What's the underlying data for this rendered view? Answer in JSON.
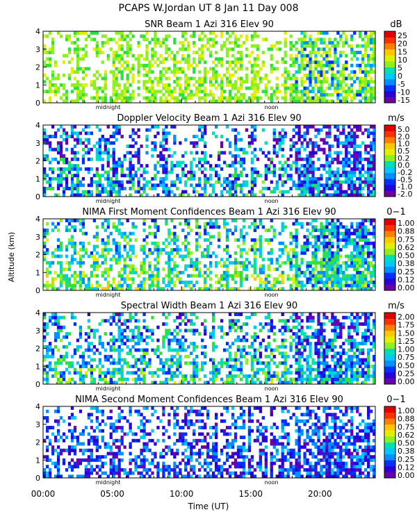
{
  "header": {
    "title": "PCAPS W.Jordan UT   8 Jan 11 Day 008"
  },
  "figure": {
    "ylabel": "Altitude (km)",
    "xlabel": "Time (UT)",
    "x_tick_labels": [
      "00:00",
      "05:00",
      "10:00",
      "15:00",
      "20:00"
    ],
    "marker_midnight": "midnight",
    "marker_noon": "noon"
  },
  "palette": [
    "#6a00a8",
    "#2a00d8",
    "#0030ff",
    "#0090ff",
    "#00c8ff",
    "#00e0b0",
    "#30e040",
    "#8ef020",
    "#e0f000",
    "#ffc800",
    "#ff8000",
    "#ff3000",
    "#e00000"
  ],
  "chart_data": [
    {
      "type": "heatmap",
      "title": "SNR Beam 1 Azi 316 Elev 90",
      "unit": "dB",
      "x_hours_range": [
        0,
        24
      ],
      "ylim_km": [
        0,
        4
      ],
      "y_ticks": [
        "0",
        "1",
        "2",
        "3",
        "4"
      ],
      "colorbar_ticks": [
        "25",
        "20",
        "15",
        "10",
        "5",
        "0",
        "-5",
        "-10",
        "-15"
      ],
      "colorbar_range": [
        -15,
        25
      ]
    },
    {
      "type": "heatmap",
      "title": "Doppler Velocity Beam 1 Azi 316 Elev 90",
      "unit": "m/s",
      "x_hours_range": [
        0,
        24
      ],
      "ylim_km": [
        0,
        4
      ],
      "y_ticks": [
        "0",
        "1",
        "2",
        "3",
        "4"
      ],
      "colorbar_ticks": [
        "5.0",
        "2.0",
        "1.0",
        "0.5",
        "0.2",
        "0.0",
        "-0.2",
        "-0.5",
        "-1.0",
        "-2.0"
      ],
      "colorbar_range": [
        -2.0,
        5.0
      ]
    },
    {
      "type": "heatmap",
      "title": "NIMA First Moment Confidences Beam 1 Azi 316 Elev 90",
      "unit": "0−1",
      "x_hours_range": [
        0,
        24
      ],
      "ylim_km": [
        0,
        4
      ],
      "y_ticks": [
        "0",
        "1",
        "2",
        "3",
        "4"
      ],
      "colorbar_ticks": [
        "1.00",
        "0.88",
        "0.75",
        "0.62",
        "0.50",
        "0.38",
        "0.25",
        "0.12",
        "0.00"
      ],
      "colorbar_range": [
        0,
        1
      ]
    },
    {
      "type": "heatmap",
      "title": "Spectral Width Beam 1 Azi 316 Elev 90",
      "unit": "m/s",
      "x_hours_range": [
        0,
        24
      ],
      "ylim_km": [
        0,
        4
      ],
      "y_ticks": [
        "0",
        "1",
        "2",
        "3",
        "4"
      ],
      "colorbar_ticks": [
        "2.00",
        "1.75",
        "1.50",
        "1.25",
        "1.00",
        "0.75",
        "0.50",
        "0.25",
        "0.00"
      ],
      "colorbar_range": [
        0,
        2
      ]
    },
    {
      "type": "heatmap",
      "title": "NIMA Second Moment Confidences Beam 1 Azi 316 Elev 90",
      "unit": "0−1",
      "x_hours_range": [
        0,
        24
      ],
      "ylim_km": [
        0,
        4
      ],
      "y_ticks": [
        "0",
        "1",
        "2",
        "3",
        "4"
      ],
      "colorbar_ticks": [
        "1.00",
        "0.88",
        "0.75",
        "0.62",
        "0.50",
        "0.38",
        "0.25",
        "0.12",
        "0.00"
      ],
      "colorbar_range": [
        0,
        1
      ]
    }
  ]
}
